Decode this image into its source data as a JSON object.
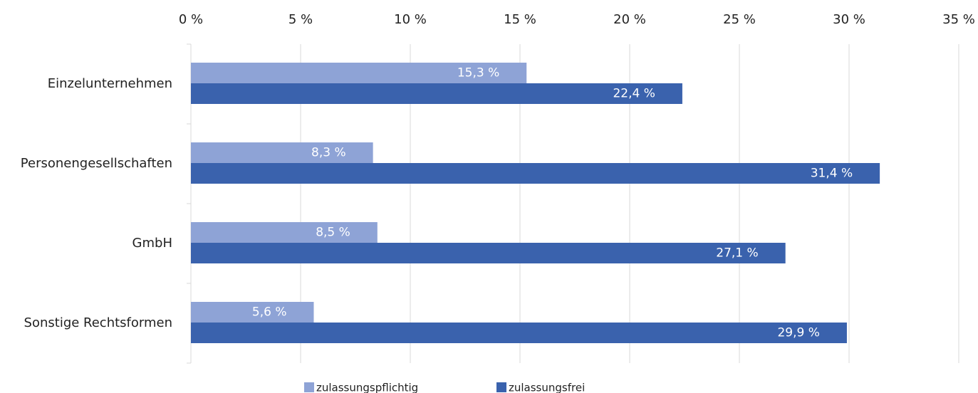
{
  "chart_data": {
    "type": "bar",
    "orientation": "horizontal",
    "categories": [
      "Einzelunternehmen",
      "Personengesellschaften",
      "GmbH",
      "Sonstige Rechtsformen"
    ],
    "series": [
      {
        "name": "zulassungspflichtig",
        "color": "#8ea3d6",
        "values": [
          15.3,
          8.3,
          8.5,
          5.6
        ],
        "value_labels": [
          "15,3 %",
          "8,3 %",
          "8,5 %",
          "5,6 %"
        ]
      },
      {
        "name": "zulassungsfrei",
        "color": "#3a62ad",
        "values": [
          22.4,
          31.4,
          27.1,
          29.9
        ],
        "value_labels": [
          "22,4 %",
          "31,4 %",
          "27,1 %",
          "29,9 %"
        ]
      }
    ],
    "xlim": [
      0,
      35
    ],
    "xticks": [
      {
        "value": 0,
        "label": "0 %"
      },
      {
        "value": 5,
        "label": "5 %"
      },
      {
        "value": 10,
        "label": "10 %"
      },
      {
        "value": 15,
        "label": "15 %"
      },
      {
        "value": 20,
        "label": "20 %"
      },
      {
        "value": 25,
        "label": "25 %"
      },
      {
        "value": 30,
        "label": "30 %"
      },
      {
        "value": 35,
        "label": "35 %"
      }
    ],
    "grid": true,
    "legend": "bottom"
  }
}
